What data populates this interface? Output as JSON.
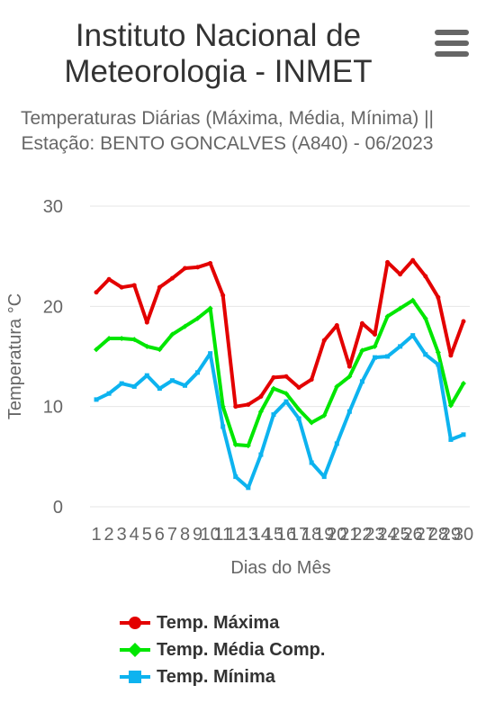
{
  "header": {
    "title": "Instituto Nacional de Meteorologia - INMET",
    "subtitle": "Temperaturas Diárias (Máxima, Média, Mínima) || Estação: BENTO GONCALVES (A840) - 06/2023",
    "menu_icon": "hamburger-menu-icon"
  },
  "chart_data": {
    "type": "line",
    "title": "Instituto Nacional de Meteorologia - INMET",
    "subtitle": "Temperaturas Diárias (Máxima, Média, Mínima) || Estação: BENTO GONCALVES (A840) - 06/2023",
    "xlabel": "Dias do Mês",
    "ylabel": "Temperatura °C",
    "ylim": [
      0,
      30
    ],
    "yticks": [
      0,
      10,
      20,
      30
    ],
    "grid": true,
    "legend_position": "bottom",
    "categories": [
      "1",
      "2",
      "3",
      "4",
      "5",
      "6",
      "7",
      "8",
      "9",
      "10",
      "11",
      "12",
      "13",
      "14",
      "15",
      "16",
      "17",
      "18",
      "19",
      "20",
      "21",
      "22",
      "23",
      "24",
      "25",
      "26",
      "27",
      "28",
      "29",
      "30"
    ],
    "series": [
      {
        "name": "Temp. Máxima",
        "color": "#e30000",
        "marker": "circle",
        "values": [
          21.4,
          22.7,
          21.9,
          22.1,
          18.4,
          21.9,
          22.8,
          23.8,
          23.9,
          24.3,
          21.1,
          10.0,
          10.2,
          11.0,
          12.9,
          13.0,
          11.9,
          12.7,
          16.6,
          18.1,
          14.0,
          18.3,
          17.2,
          24.4,
          23.2,
          24.6,
          23.0,
          20.9,
          15.1,
          18.5
        ]
      },
      {
        "name": "Temp. Média Comp.",
        "color": "#00e600",
        "marker": "diamond",
        "values": [
          15.7,
          16.8,
          16.8,
          16.7,
          16.0,
          15.7,
          17.2,
          18.0,
          18.8,
          19.8,
          10.0,
          6.2,
          6.1,
          9.5,
          11.8,
          11.3,
          9.7,
          8.4,
          9.1,
          12.0,
          13.0,
          15.6,
          16.0,
          19.0,
          19.8,
          20.6,
          18.8,
          15.4,
          10.1,
          12.3
        ]
      },
      {
        "name": "Temp. Mínima",
        "color": "#0db3ef",
        "marker": "square",
        "values": [
          10.7,
          11.3,
          12.3,
          12.0,
          13.1,
          11.8,
          12.6,
          12.1,
          13.4,
          15.3,
          8.0,
          3.0,
          1.9,
          5.2,
          9.2,
          10.5,
          8.8,
          4.4,
          3.0,
          6.3,
          9.5,
          12.5,
          14.9,
          15.0,
          16.0,
          17.1,
          15.2,
          14.2,
          6.7,
          7.2
        ]
      }
    ]
  }
}
